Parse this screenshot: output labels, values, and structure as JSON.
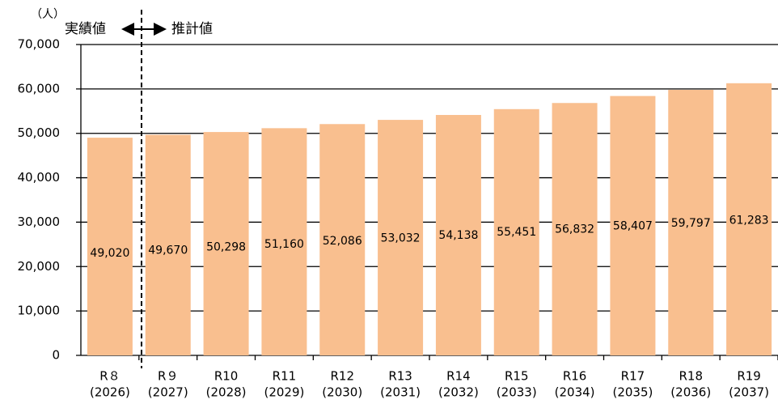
{
  "chart_data": {
    "type": "bar",
    "unit_label": "（人）",
    "annotations": [
      "実績値",
      "推計値"
    ],
    "categories": [
      [
        "R８",
        "(2026)"
      ],
      [
        "R９",
        "(2027)"
      ],
      [
        "R10",
        "(2028)"
      ],
      [
        "R11",
        "(2029)"
      ],
      [
        "R12",
        "(2030)"
      ],
      [
        "R13",
        "(2031)"
      ],
      [
        "R14",
        "(2032)"
      ],
      [
        "R15",
        "(2033)"
      ],
      [
        "R16",
        "(2034)"
      ],
      [
        "R17",
        "(2035)"
      ],
      [
        "R18",
        "(2036)"
      ],
      [
        "R19",
        "(2037)"
      ]
    ],
    "values": [
      49020,
      49670,
      50298,
      51160,
      52086,
      53032,
      54138,
      55451,
      56832,
      58407,
      59797,
      61283
    ],
    "value_labels": [
      "49,020",
      "49,670",
      "50,298",
      "51,160",
      "52,086",
      "53,032",
      "54,138",
      "55,451",
      "56,832",
      "58,407",
      "59,797",
      "61,283"
    ],
    "color": "#f9bf8f",
    "ylim": [
      0,
      70000
    ],
    "yticks": [
      0,
      {
        "value": 10000,
        "label": "10,000"
      },
      {
        "value": 20000,
        "label": "20,000"
      },
      {
        "value": 30000,
        "label": "30,000"
      },
      {
        "value": 40000,
        "label": "40,000"
      },
      {
        "value": 50000,
        "label": "50,000"
      },
      {
        "value": 60000,
        "label": "60,000"
      },
      {
        "value": 70000,
        "label": "70,000"
      }
    ],
    "grid": true
  }
}
